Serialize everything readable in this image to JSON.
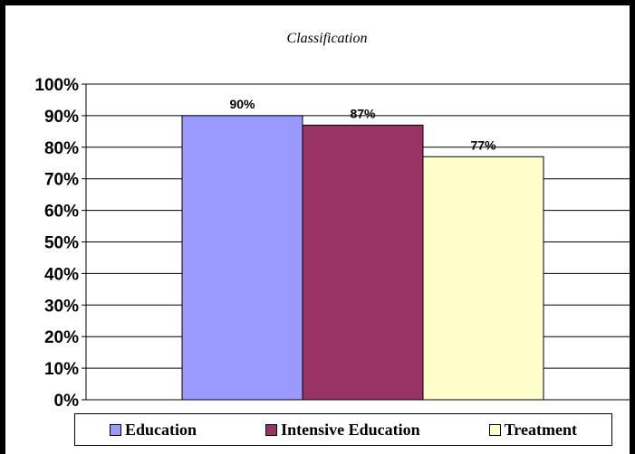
{
  "chart_data": {
    "type": "bar",
    "title": "Classification",
    "xlabel": "",
    "ylabel": "",
    "ylim": [
      0,
      1
    ],
    "y_ticks": [
      "0%",
      "10%",
      "20%",
      "30%",
      "40%",
      "50%",
      "60%",
      "70%",
      "80%",
      "90%",
      "100%"
    ],
    "grid": true,
    "legend_position": "bottom",
    "series": [
      {
        "name": "Education",
        "values": [
          0.9
        ],
        "label": "90%",
        "color": "#9999ff"
      },
      {
        "name": "Intensive Education",
        "values": [
          0.87
        ],
        "label": "87%",
        "color": "#993366"
      },
      {
        "name": "Treatment",
        "values": [
          0.77
        ],
        "label": "77%",
        "color": "#ffffcc"
      }
    ]
  }
}
